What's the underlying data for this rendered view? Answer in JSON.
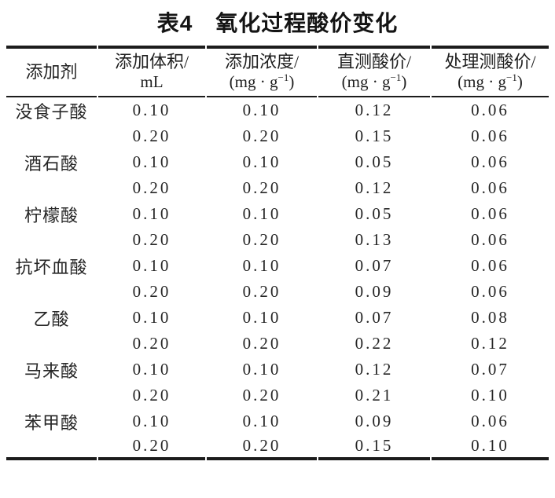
{
  "page": {
    "title": "表4　氧化过程酸价变化"
  },
  "colors": {
    "text": "#262626",
    "rule": "#1c1c1c",
    "background": "#ffffff"
  },
  "table": {
    "columns": [
      {
        "id": "additive",
        "line1": "添加剂",
        "unit_pre": "",
        "unit_sup": "",
        "unit_post": ""
      },
      {
        "id": "volume",
        "line1": "添加体积/",
        "unit_pre": "mL",
        "unit_sup": "",
        "unit_post": ""
      },
      {
        "id": "concentration",
        "line1": "添加浓度/",
        "unit_pre": "(mg · g",
        "unit_sup": "−1",
        "unit_post": ")"
      },
      {
        "id": "direct",
        "line1": "直测酸价/",
        "unit_pre": "(mg · g",
        "unit_sup": "−1",
        "unit_post": ")"
      },
      {
        "id": "treated",
        "line1": "处理测酸价/",
        "unit_pre": "(mg · g",
        "unit_sup": "−1",
        "unit_post": ")"
      }
    ],
    "rows": [
      {
        "additive": "没食子酸",
        "volume": "0.10",
        "concentration": "0.10",
        "direct": "0.12",
        "treated": "0.06"
      },
      {
        "additive": "",
        "volume": "0.20",
        "concentration": "0.20",
        "direct": "0.15",
        "treated": "0.06"
      },
      {
        "additive": "酒石酸",
        "volume": "0.10",
        "concentration": "0.10",
        "direct": "0.05",
        "treated": "0.06"
      },
      {
        "additive": "",
        "volume": "0.20",
        "concentration": "0.20",
        "direct": "0.12",
        "treated": "0.06"
      },
      {
        "additive": "柠檬酸",
        "volume": "0.10",
        "concentration": "0.10",
        "direct": "0.05",
        "treated": "0.06"
      },
      {
        "additive": "",
        "volume": "0.20",
        "concentration": "0.20",
        "direct": "0.13",
        "treated": "0.06"
      },
      {
        "additive": "抗坏血酸",
        "volume": "0.10",
        "concentration": "0.10",
        "direct": "0.07",
        "treated": "0.06"
      },
      {
        "additive": "",
        "volume": "0.20",
        "concentration": "0.20",
        "direct": "0.09",
        "treated": "0.06"
      },
      {
        "additive": "乙酸",
        "volume": "0.10",
        "concentration": "0.10",
        "direct": "0.07",
        "treated": "0.08"
      },
      {
        "additive": "",
        "volume": "0.20",
        "concentration": "0.20",
        "direct": "0.22",
        "treated": "0.12"
      },
      {
        "additive": "马来酸",
        "volume": "0.10",
        "concentration": "0.10",
        "direct": "0.12",
        "treated": "0.07"
      },
      {
        "additive": "",
        "volume": "0.20",
        "concentration": "0.20",
        "direct": "0.21",
        "treated": "0.10"
      },
      {
        "additive": "苯甲酸",
        "volume": "0.10",
        "concentration": "0.10",
        "direct": "0.09",
        "treated": "0.06"
      },
      {
        "additive": "",
        "volume": "0.20",
        "concentration": "0.20",
        "direct": "0.15",
        "treated": "0.10"
      }
    ]
  }
}
